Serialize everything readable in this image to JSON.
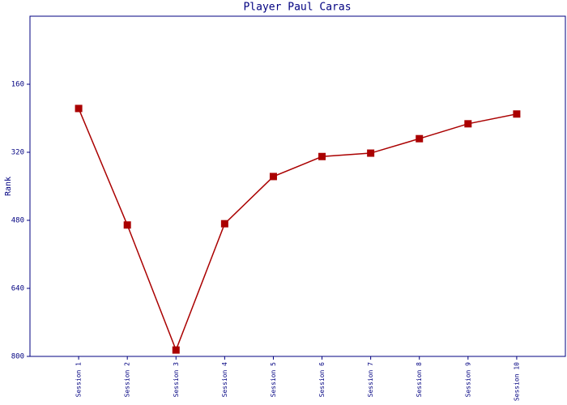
{
  "chart_data": {
    "type": "line",
    "title": "Player Paul Caras",
    "y_label": "Rank",
    "categories": [
      "Session 1",
      "Session 2",
      "Session 3",
      "Session 4",
      "Session 5",
      "Session 6",
      "Session 7",
      "Session 8",
      "Session 9",
      "Session 10"
    ],
    "series": [
      {
        "name": "Rank",
        "color": "#aa0000",
        "values": [
          217,
          491,
          785,
          488,
          377,
          330,
          322,
          288,
          253,
          230
        ]
      }
    ],
    "ylim": [
      800,
      0
    ],
    "yticks": [
      160,
      320,
      480,
      640,
      800
    ],
    "grid": false
  }
}
